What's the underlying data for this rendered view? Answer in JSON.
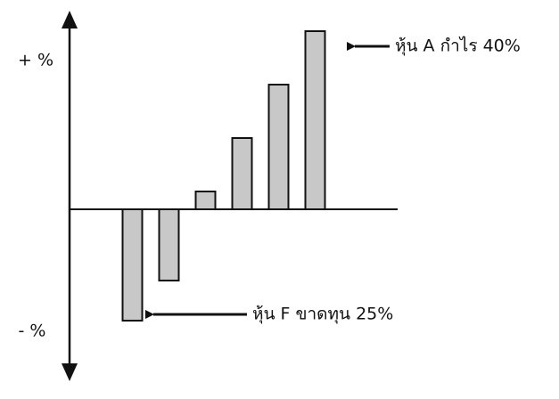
{
  "chart_data": {
    "type": "bar",
    "values": [
      -25,
      -16,
      4,
      16,
      28,
      40
    ],
    "color": "#c8c8c8",
    "ylim": [
      -38,
      44
    ],
    "y_label_positive": "+ %",
    "y_label_negative": "- %",
    "annotations": [
      "หุ้น A กำไร 40%",
      "หุ้น F ขาดทุน 25%"
    ]
  }
}
